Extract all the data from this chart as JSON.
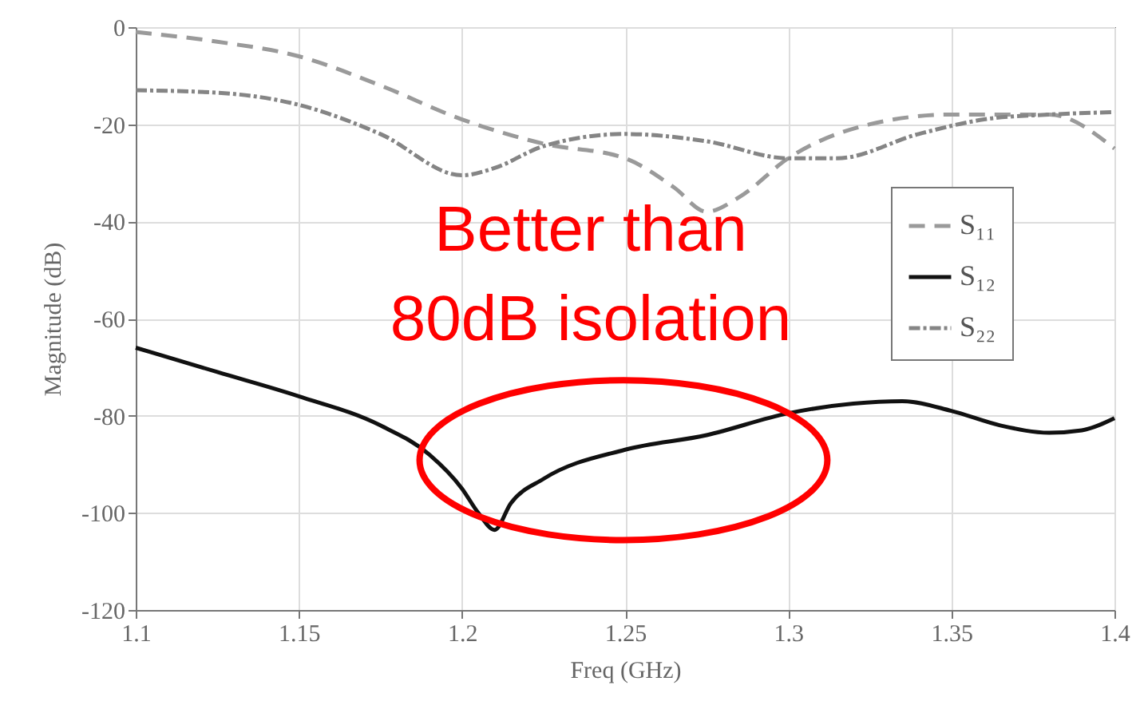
{
  "chart_data": {
    "type": "line",
    "xlabel": "Freq (GHz)",
    "ylabel": "Magnitude (dB)",
    "xlim": [
      1.1,
      1.4
    ],
    "xticks": [
      1.1,
      1.15,
      1.2,
      1.25,
      1.3,
      1.35,
      1.4
    ],
    "ylim": [
      -120,
      0
    ],
    "yticks": [
      -120,
      -100,
      -80,
      -60,
      -40,
      -20,
      0
    ],
    "grid": true,
    "legend": "right",
    "marker": "none",
    "series": [
      {
        "name": "S₁₁",
        "color": "#9a9a9a",
        "line_style": "dashed",
        "x": [
          1.1,
          1.125,
          1.15,
          1.175,
          1.2,
          1.225,
          1.25,
          1.265,
          1.275,
          1.285,
          1.3,
          1.325,
          1.35,
          1.38,
          1.4
        ],
        "values": [
          -1,
          -3,
          -6,
          -12,
          -19,
          -24,
          -27,
          -33,
          -38,
          -35,
          -27,
          -20,
          -18,
          -18,
          -25
        ]
      },
      {
        "name": "S₁₂",
        "color": "#111111",
        "line_style": "solid",
        "x": [
          1.1,
          1.125,
          1.15,
          1.175,
          1.19,
          1.2,
          1.205,
          1.21,
          1.215,
          1.225,
          1.25,
          1.275,
          1.3,
          1.32,
          1.335,
          1.35,
          1.365,
          1.38,
          1.39,
          1.4
        ],
        "values": [
          -66,
          -71,
          -76,
          -82,
          -88,
          -95,
          -100,
          -103.5,
          -98,
          -93,
          -87,
          -84,
          -79.5,
          -77.5,
          -77,
          -79,
          -82,
          -83.5,
          -83,
          -80.5
        ]
      },
      {
        "name": "S₂₂",
        "color": "#858585",
        "line_style": "dotted",
        "x": [
          1.1,
          1.125,
          1.15,
          1.175,
          1.2,
          1.21,
          1.225,
          1.25,
          1.275,
          1.3,
          1.315,
          1.34,
          1.36,
          1.38,
          1.4
        ],
        "values": [
          -13,
          -13.5,
          -16,
          -22,
          -30.5,
          -29,
          -24.5,
          -22,
          -23.5,
          -27,
          -27,
          -22,
          -19,
          -18,
          -17.5
        ]
      }
    ],
    "annotations": [
      "Better than\n80dB isolation"
    ]
  }
}
